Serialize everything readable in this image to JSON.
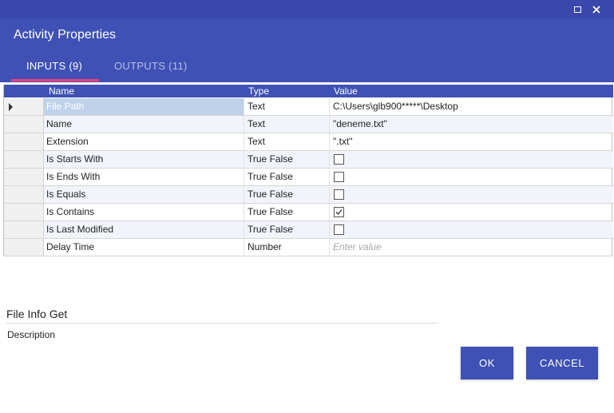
{
  "window": {
    "maximize_icon": "maximize-icon",
    "close_icon": "close-icon"
  },
  "header": {
    "title": "Activity Properties",
    "tabs": [
      {
        "label": "INPUTS (9)",
        "active": true
      },
      {
        "label": "OUTPUTS (11)",
        "active": false
      }
    ]
  },
  "grid": {
    "columns": [
      "Name",
      "Type",
      "Value"
    ],
    "rows": [
      {
        "name": "File Path",
        "type": "Text",
        "value": "C:\\Users\\glb900*****\\Desktop",
        "selected": true
      },
      {
        "name": "Name",
        "type": "Text",
        "value": "\"deneme.txt\""
      },
      {
        "name": "Extension",
        "type": "Text",
        "value": "\".txt\""
      },
      {
        "name": "Is Starts With",
        "type": "True False",
        "checked": false
      },
      {
        "name": "Is Ends With",
        "type": "True False",
        "checked": false
      },
      {
        "name": "Is Equals",
        "type": "True False",
        "checked": false
      },
      {
        "name": "Is Contains",
        "type": "True False",
        "checked": true
      },
      {
        "name": "Is Last Modified",
        "type": "True False",
        "checked": false
      },
      {
        "name": "Delay Time",
        "type": "Number",
        "value": "",
        "placeholder": "Enter value"
      }
    ]
  },
  "info": {
    "title": "File Info Get",
    "description_label": "Description"
  },
  "buttons": {
    "ok": "OK",
    "cancel": "CANCEL"
  },
  "colors": {
    "titlebar": "#3a47ad",
    "header": "#3f51b5",
    "accent": "#ec407a",
    "selected_row": "#bfd2ea"
  }
}
